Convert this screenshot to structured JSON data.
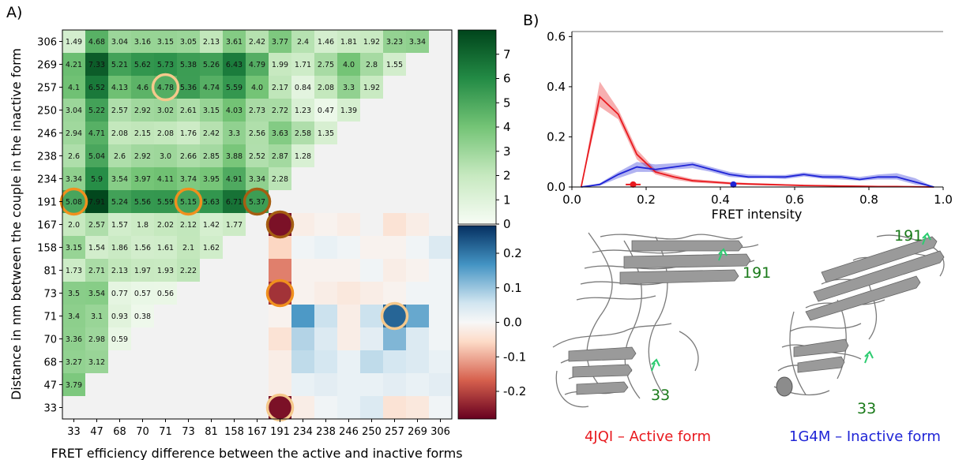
{
  "panels": {
    "a_label": "A)",
    "b_label": "B)"
  },
  "colors": {
    "green_low": "#f7fcf5",
    "green_high": "#00441b",
    "diverging_neg": "#67001f",
    "diverging_pos": "#053061",
    "background_cell": "#f2f2f2",
    "circle_light": "#f5c98c",
    "circle_mid": "#f0901e",
    "circle_dark": "#a55e12",
    "active": "#e8191e",
    "inactive": "#1f24d6",
    "residue_label": "#1a7a1a"
  },
  "chart_data": [
    {
      "type": "heatmap",
      "xlabel": "FRET efficiency difference between the active and inactive forms",
      "ylabel": "Distance in nm between the couple in the inactive form",
      "residues": [
        "33",
        "47",
        "68",
        "70",
        "71",
        "73",
        "81",
        "158",
        "167",
        "191",
        "234",
        "238",
        "246",
        "250",
        "257",
        "269",
        "306"
      ],
      "x_tick_labels": [
        "33",
        "47",
        "68",
        "70",
        "71",
        "73",
        "81",
        "158",
        "167",
        "191",
        "234",
        "238",
        "246",
        "250",
        "257",
        "269",
        "306"
      ],
      "y_tick_labels": [
        "306",
        "269",
        "257",
        "250",
        "246",
        "238",
        "234",
        "191",
        "167",
        "158",
        "81",
        "73",
        "71",
        "70",
        "68",
        "47",
        "33"
      ],
      "distance_values": [
        [
          "1.49",
          "4.68",
          "3.04",
          "3.16",
          "3.15",
          "3.05",
          "2.13",
          "3.61",
          "2.42",
          "3.77",
          "2.4",
          "1.46",
          "1.81",
          "1.92",
          "3.23",
          "3.34"
        ],
        [
          "4.21",
          "7.33",
          "5.21",
          "5.62",
          "5.73",
          "5.38",
          "5.26",
          "6.43",
          "4.79",
          "1.99",
          "1.71",
          "2.75",
          "4.0",
          "2.8",
          "1.55"
        ],
        [
          "4.1",
          "6.52",
          "4.13",
          "4.6",
          "4.78",
          "5.36",
          "4.74",
          "5.59",
          "4.0",
          "2.17",
          "0.84",
          "2.08",
          "3.3",
          "1.92"
        ],
        [
          "3.04",
          "5.22",
          "2.57",
          "2.92",
          "3.02",
          "2.61",
          "3.15",
          "4.03",
          "2.73",
          "2.72",
          "1.23",
          "0.47",
          "1.39"
        ],
        [
          "2.94",
          "4.71",
          "2.08",
          "2.15",
          "2.08",
          "1.76",
          "2.42",
          "3.3",
          "2.56",
          "3.63",
          "2.58",
          "1.35"
        ],
        [
          "2.6",
          "5.04",
          "2.6",
          "2.92",
          "3.0",
          "2.66",
          "2.85",
          "3.88",
          "2.52",
          "2.87",
          "1.28"
        ],
        [
          "3.34",
          "5.9",
          "3.54",
          "3.97",
          "4.11",
          "3.74",
          "3.95",
          "4.91",
          "3.34",
          "2.28"
        ],
        [
          "5.08",
          "7.91",
          "5.24",
          "5.56",
          "5.59",
          "5.15",
          "5.63",
          "6.71",
          "5.37"
        ],
        [
          "2.0",
          "2.57",
          "1.57",
          "1.8",
          "2.02",
          "2.12",
          "1.42",
          "1.77"
        ],
        [
          "3.15",
          "1.54",
          "1.86",
          "1.56",
          "1.61",
          "2.1",
          "1.62"
        ],
        [
          "1.73",
          "2.71",
          "2.13",
          "1.97",
          "1.93",
          "2.22"
        ],
        [
          "3.5",
          "3.54",
          "0.77",
          "0.57",
          "0.56"
        ],
        [
          "3.4",
          "3.1",
          "0.93",
          "0.38"
        ],
        [
          "3.36",
          "2.98",
          "0.59"
        ],
        [
          "3.27",
          "3.12"
        ],
        [
          "3.79"
        ],
        []
      ],
      "fret_difference": [
        {
          "row": "167",
          "col": "191",
          "value": -0.26
        },
        {
          "row": "158",
          "col": "191",
          "value": -0.06
        },
        {
          "row": "81",
          "col": "191",
          "value": -0.14
        },
        {
          "row": "73",
          "col": "191",
          "value": -0.22
        },
        {
          "row": "71",
          "col": "191",
          "value": -0.01
        },
        {
          "row": "70",
          "col": "191",
          "value": -0.04
        },
        {
          "row": "68",
          "col": "191",
          "value": -0.02
        },
        {
          "row": "47",
          "col": "191",
          "value": -0.02
        },
        {
          "row": "33",
          "col": "191",
          "value": -0.26
        },
        {
          "row": "167",
          "col": "234",
          "value": -0.02
        },
        {
          "row": "167",
          "col": "238",
          "value": -0.01
        },
        {
          "row": "167",
          "col": "246",
          "value": -0.02
        },
        {
          "row": "167",
          "col": "257",
          "value": -0.04
        },
        {
          "row": "167",
          "col": "269",
          "value": -0.02
        },
        {
          "row": "158",
          "col": "234",
          "value": 0.01
        },
        {
          "row": "158",
          "col": "238",
          "value": 0.02
        },
        {
          "row": "158",
          "col": "246",
          "value": 0.01
        },
        {
          "row": "158",
          "col": "250",
          "value": -0.01
        },
        {
          "row": "158",
          "col": "257",
          "value": -0.01
        },
        {
          "row": "158",
          "col": "269",
          "value": 0.01
        },
        {
          "row": "158",
          "col": "306",
          "value": 0.04
        },
        {
          "row": "81",
          "col": "234",
          "value": -0.01
        },
        {
          "row": "81",
          "col": "238",
          "value": -0.01
        },
        {
          "row": "81",
          "col": "246",
          "value": -0.01
        },
        {
          "row": "81",
          "col": "250",
          "value": 0.01
        },
        {
          "row": "81",
          "col": "257",
          "value": -0.02
        },
        {
          "row": "81",
          "col": "269",
          "value": -0.01
        },
        {
          "row": "81",
          "col": "306",
          "value": 0.01
        },
        {
          "row": "73",
          "col": "234",
          "value": -0.01
        },
        {
          "row": "73",
          "col": "238",
          "value": -0.02
        },
        {
          "row": "73",
          "col": "246",
          "value": -0.03
        },
        {
          "row": "73",
          "col": "250",
          "value": -0.02
        },
        {
          "row": "73",
          "col": "257",
          "value": -0.01
        },
        {
          "row": "73",
          "col": "269",
          "value": 0.01
        },
        {
          "row": "73",
          "col": "306",
          "value": 0.01
        },
        {
          "row": "71",
          "col": "234",
          "value": 0.16
        },
        {
          "row": "71",
          "col": "238",
          "value": 0.06
        },
        {
          "row": "71",
          "col": "246",
          "value": -0.02
        },
        {
          "row": "71",
          "col": "250",
          "value": 0.06
        },
        {
          "row": "71",
          "col": "257",
          "value": 0.22
        },
        {
          "row": "71",
          "col": "269",
          "value": 0.14
        },
        {
          "row": "71",
          "col": "306",
          "value": 0.01
        },
        {
          "row": "70",
          "col": "234",
          "value": 0.08
        },
        {
          "row": "70",
          "col": "238",
          "value": 0.04
        },
        {
          "row": "70",
          "col": "246",
          "value": -0.02
        },
        {
          "row": "70",
          "col": "250",
          "value": 0.03
        },
        {
          "row": "70",
          "col": "257",
          "value": 0.12
        },
        {
          "row": "70",
          "col": "269",
          "value": 0.04
        },
        {
          "row": "70",
          "col": "306",
          "value": 0.01
        },
        {
          "row": "68",
          "col": "234",
          "value": 0.07
        },
        {
          "row": "68",
          "col": "238",
          "value": 0.05
        },
        {
          "row": "68",
          "col": "246",
          "value": 0.02
        },
        {
          "row": "68",
          "col": "250",
          "value": 0.07
        },
        {
          "row": "68",
          "col": "257",
          "value": 0.05
        },
        {
          "row": "68",
          "col": "269",
          "value": 0.04
        },
        {
          "row": "68",
          "col": "306",
          "value": 0.02
        },
        {
          "row": "47",
          "col": "234",
          "value": 0.02
        },
        {
          "row": "47",
          "col": "238",
          "value": 0.03
        },
        {
          "row": "47",
          "col": "246",
          "value": 0.02
        },
        {
          "row": "47",
          "col": "250",
          "value": 0.02
        },
        {
          "row": "47",
          "col": "257",
          "value": 0.03
        },
        {
          "row": "47",
          "col": "269",
          "value": 0.02
        },
        {
          "row": "47",
          "col": "306",
          "value": 0.03
        },
        {
          "row": "33",
          "col": "234",
          "value": -0.02
        },
        {
          "row": "33",
          "col": "238",
          "value": 0.01
        },
        {
          "row": "33",
          "col": "246",
          "value": 0.02
        },
        {
          "row": "33",
          "col": "250",
          "value": 0.04
        },
        {
          "row": "33",
          "col": "257",
          "value": -0.04
        },
        {
          "row": "33",
          "col": "269",
          "value": -0.03
        },
        {
          "row": "33",
          "col": "306",
          "value": 0.01
        }
      ],
      "highlights": [
        {
          "row": "257",
          "col": "71",
          "tone": "light"
        },
        {
          "row": "191",
          "col": "33",
          "tone": "mid"
        },
        {
          "row": "191",
          "col": "73",
          "tone": "mid"
        },
        {
          "row": "191",
          "col": "167",
          "tone": "dark"
        },
        {
          "row": "167",
          "col": "191",
          "tone": "dark"
        },
        {
          "row": "73",
          "col": "191",
          "tone": "mid"
        },
        {
          "row": "71",
          "col": "257",
          "tone": "light"
        },
        {
          "row": "33",
          "col": "191",
          "tone": "light"
        }
      ],
      "colorbar_distance": {
        "ticks": [
          "0",
          "1",
          "2",
          "3",
          "4",
          "5",
          "6",
          "7"
        ],
        "vmin": 0,
        "vmax": 8
      },
      "colorbar_difference": {
        "ticks": [
          "-0.2",
          "-0.1",
          "0.0",
          "0.1",
          "0.2"
        ],
        "vmin": -0.28,
        "vmax": 0.28
      }
    },
    {
      "type": "line",
      "xlabel": "FRET intensity",
      "ylabel": "",
      "xlim": [
        0.0,
        1.0
      ],
      "ylim": [
        0.0,
        0.62
      ],
      "x_tick_labels": [
        "0.0",
        "0.2",
        "0.4",
        "0.6",
        "0.8",
        "1.0"
      ],
      "y_tick_labels": [
        "0.0",
        "0.2",
        "0.4",
        "0.6"
      ],
      "series": [
        {
          "color": "#e8191e",
          "x": [
            0.025,
            0.075,
            0.125,
            0.175,
            0.225,
            0.275,
            0.325,
            0.375,
            0.425,
            0.475,
            0.525,
            0.575,
            0.625,
            0.675,
            0.725,
            0.775,
            0.825,
            0.875,
            0.925,
            0.975
          ],
          "y": [
            0.0,
            0.36,
            0.29,
            0.13,
            0.06,
            0.04,
            0.025,
            0.02,
            0.015,
            0.012,
            0.01,
            0.008,
            0.006,
            0.005,
            0.004,
            0.003,
            0.002,
            0.002,
            0.001,
            0.0
          ],
          "y_low": [
            0.0,
            0.32,
            0.27,
            0.11,
            0.05,
            0.03,
            0.018,
            0.014,
            0.01,
            0.008,
            0.006,
            0.005,
            0.004,
            0.003,
            0.002,
            0.002,
            0.001,
            0.001,
            0.0,
            0.0
          ],
          "y_high": [
            0.0,
            0.42,
            0.31,
            0.15,
            0.07,
            0.05,
            0.032,
            0.026,
            0.02,
            0.016,
            0.014,
            0.011,
            0.009,
            0.007,
            0.006,
            0.004,
            0.003,
            0.003,
            0.002,
            0.0
          ],
          "mean_marker": {
            "x": 0.165,
            "y": 0.01,
            "err": 0.02
          }
        },
        {
          "color": "#1f24d6",
          "x": [
            0.025,
            0.075,
            0.125,
            0.175,
            0.225,
            0.275,
            0.325,
            0.375,
            0.425,
            0.475,
            0.525,
            0.575,
            0.625,
            0.675,
            0.725,
            0.775,
            0.825,
            0.875,
            0.925,
            0.975
          ],
          "y": [
            0.0,
            0.01,
            0.05,
            0.08,
            0.07,
            0.08,
            0.09,
            0.07,
            0.05,
            0.04,
            0.04,
            0.04,
            0.05,
            0.04,
            0.04,
            0.03,
            0.04,
            0.04,
            0.02,
            0.0
          ],
          "y_low": [
            0.0,
            0.005,
            0.035,
            0.06,
            0.06,
            0.07,
            0.075,
            0.06,
            0.04,
            0.035,
            0.035,
            0.032,
            0.042,
            0.033,
            0.03,
            0.025,
            0.03,
            0.03,
            0.01,
            0.0
          ],
          "y_high": [
            0.0,
            0.015,
            0.06,
            0.1,
            0.09,
            0.095,
            0.1,
            0.08,
            0.06,
            0.05,
            0.048,
            0.048,
            0.058,
            0.05,
            0.048,
            0.04,
            0.05,
            0.055,
            0.035,
            0.0
          ],
          "mean_marker": {
            "x": 0.435,
            "y": 0.01,
            "err": 0.0
          }
        }
      ]
    }
  ],
  "structures": {
    "left": {
      "caption": "4JQI – Active form",
      "residue_a": "191",
      "residue_b": "33"
    },
    "right": {
      "caption": "1G4M – Inactive form",
      "residue_a": "191",
      "residue_b": "33"
    }
  }
}
